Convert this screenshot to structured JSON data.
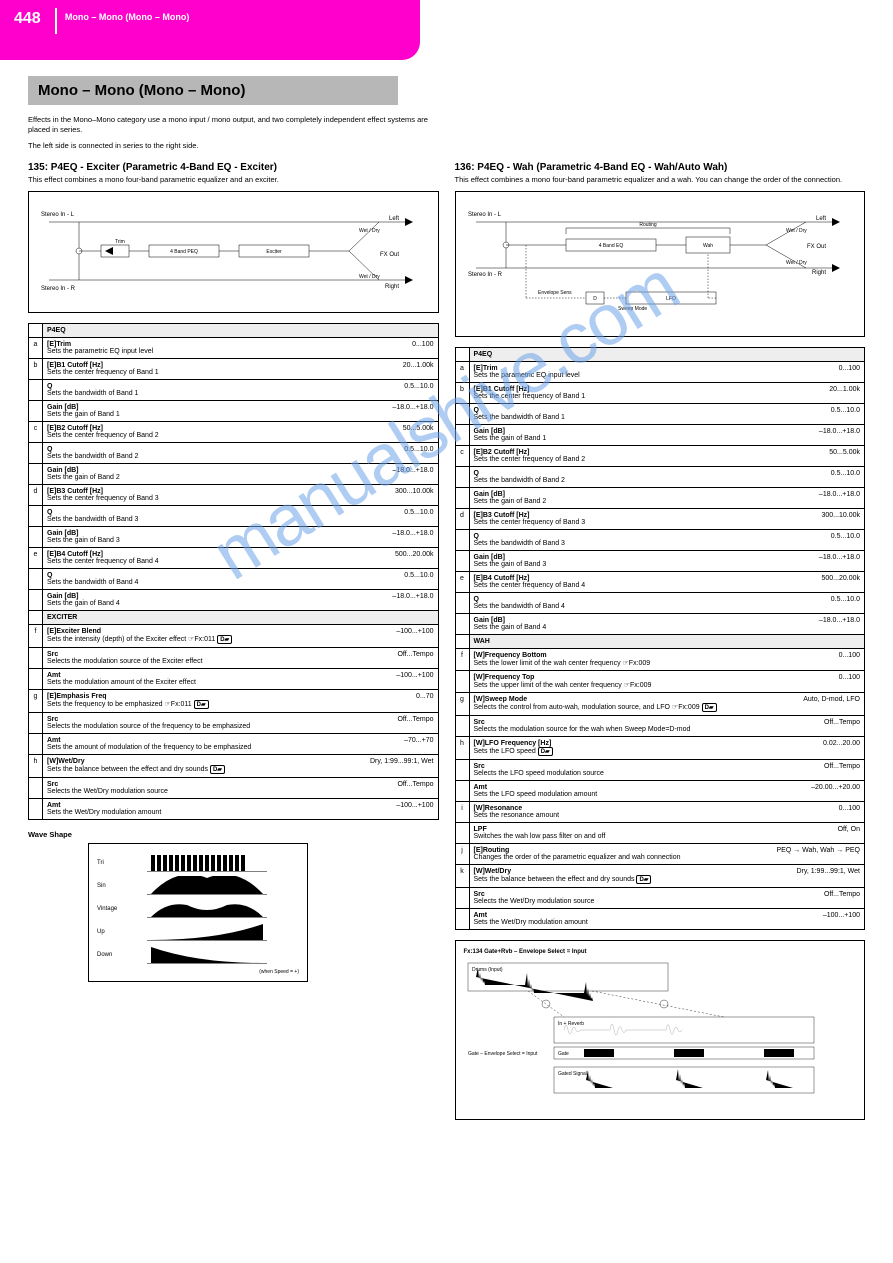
{
  "header": {
    "page_number": "448",
    "breadcrumb": "Mono – Mono (Mono – Mono)"
  },
  "section": {
    "title": "Mono – Mono (Mono – Mono)",
    "intro": "Effects in the Mono–Mono category use a mono input / mono output, and two completely independent effect systems are placed in series.",
    "chain_note": "The left side is connected in series to the right side."
  },
  "effects": [
    {
      "id": "135",
      "name": "P4EQ - Exciter (Parametric 4-Band EQ - Exciter)",
      "desc": "This effect combines a mono four-band parametric equalizer and an exciter."
    },
    {
      "id": "136",
      "name": "P4EQ - Wah (Parametric 4-Band EQ - Wah/Auto Wah)",
      "desc": "This effect combines a mono four-band parametric equalizer and a wah. You can change the order of the connection."
    }
  ],
  "diagrams": {
    "d1_labels": {
      "in_l": "Stereo In - L",
      "in_r": "Stereo In - R",
      "out_l": "Left",
      "out_r": "Right",
      "wet": "Wet / Dry",
      "blocks": [
        "Trim",
        "4 Band PEQ",
        "Exciter"
      ],
      "fx": "FX Out"
    },
    "d2_labels": {
      "in_l": "Stereo In - L",
      "in_r": "Stereo In - R",
      "out_l": "Left",
      "out_r": "Right",
      "wet": "Wet / Dry",
      "blocks": [
        "4 Band EQ",
        "Wah"
      ],
      "sweep": "Sweep Mode",
      "env": "Envelope Sens",
      "lfo": "LFO",
      "dmod": "D-mod",
      "routing": "Routing"
    }
  },
  "tables": {
    "t135_header": {
      "group": "P4EQ"
    },
    "t135": [
      {
        "n": "a",
        "name": "[E]Trim",
        "range": "0...100",
        "desc": "Sets the parametric EQ input level"
      },
      {
        "n": "b",
        "name": "[E]B1 Cutoff [Hz]",
        "range": "20...1.00k",
        "desc": "Sets the center frequency of Band 1"
      },
      {
        "n": "",
        "name": "Q",
        "range": "0.5...10.0",
        "desc": "Sets the bandwidth of Band 1"
      },
      {
        "n": "",
        "name": "Gain [dB]",
        "range": "–18.0...+18.0",
        "desc": "Sets the gain of Band 1"
      },
      {
        "n": "c",
        "name": "[E]B2 Cutoff [Hz]",
        "range": "50...5.00k",
        "desc": "Sets the center frequency of Band 2"
      },
      {
        "n": "",
        "name": "Q",
        "range": "0.5...10.0",
        "desc": "Sets the bandwidth of Band 2"
      },
      {
        "n": "",
        "name": "Gain [dB]",
        "range": "–18.0...+18.0",
        "desc": "Sets the gain of Band 2"
      },
      {
        "n": "d",
        "name": "[E]B3 Cutoff [Hz]",
        "range": "300...10.00k",
        "desc": "Sets the center frequency of Band 3"
      },
      {
        "n": "",
        "name": "Q",
        "range": "0.5...10.0",
        "desc": "Sets the bandwidth of Band 3"
      },
      {
        "n": "",
        "name": "Gain [dB]",
        "range": "–18.0...+18.0",
        "desc": "Sets the gain of Band 3"
      },
      {
        "n": "e",
        "name": "[E]B4 Cutoff [Hz]",
        "range": "500...20.00k",
        "desc": "Sets the center frequency of Band 4"
      },
      {
        "n": "",
        "name": "Q",
        "range": "0.5...10.0",
        "desc": "Sets the bandwidth of Band 4"
      },
      {
        "n": "",
        "name": "Gain [dB]",
        "range": "–18.0...+18.0",
        "desc": "Sets the gain of Band 4"
      }
    ],
    "t135_group2": "EXCITER",
    "t135b": [
      {
        "n": "f",
        "name": "[E]Exciter Blend",
        "range": "–100...+100",
        "desc": "Sets the intensity (depth) of the Exciter effect ☞Fx:011",
        "dmod": true
      },
      {
        "n": "",
        "name": "Src",
        "range": "Off...Tempo",
        "desc": "Selects the modulation source of the Exciter effect"
      },
      {
        "n": "",
        "name": "Amt",
        "range": "–100...+100",
        "desc": "Sets the modulation amount of the Exciter effect"
      },
      {
        "n": "g",
        "name": "[E]Emphasis Freq",
        "range": "0...70",
        "desc": "Sets the frequency to be emphasized ☞Fx:011",
        "dmod": true
      },
      {
        "n": "",
        "name": "Src",
        "range": "Off...Tempo",
        "desc": "Selects the modulation source of the frequency to be emphasized"
      },
      {
        "n": "",
        "name": "Amt",
        "range": "–70...+70",
        "desc": "Sets the amount of modulation of the frequency to be emphasized"
      },
      {
        "n": "h",
        "name": "[W]Wet/Dry",
        "range": "Dry, 1:99...99:1, Wet",
        "desc": "Sets the balance between the effect and dry sounds",
        "dmod": true
      },
      {
        "n": "",
        "name": "Src",
        "range": "Off...Tempo",
        "desc": "Selects the Wet/Dry modulation source"
      },
      {
        "n": "",
        "name": "Amt",
        "range": "–100...+100",
        "desc": "Sets the Wet/Dry modulation amount"
      }
    ],
    "t136_header": {
      "group": "P4EQ"
    },
    "t136": [
      {
        "n": "a",
        "name": "[E]Trim",
        "range": "0...100",
        "desc": "Sets the parametric EQ input level"
      },
      {
        "n": "b",
        "name": "[E]B1 Cutoff [Hz]",
        "range": "20...1.00k",
        "desc": "Sets the center frequency of Band 1"
      },
      {
        "n": "",
        "name": "Q",
        "range": "0.5...10.0",
        "desc": "Sets the bandwidth of Band 1"
      },
      {
        "n": "",
        "name": "Gain [dB]",
        "range": "–18.0...+18.0",
        "desc": "Sets the gain of Band 1"
      },
      {
        "n": "c",
        "name": "[E]B2 Cutoff [Hz]",
        "range": "50...5.00k",
        "desc": "Sets the center frequency of Band 2"
      },
      {
        "n": "",
        "name": "Q",
        "range": "0.5...10.0",
        "desc": "Sets the bandwidth of Band 2"
      },
      {
        "n": "",
        "name": "Gain [dB]",
        "range": "–18.0...+18.0",
        "desc": "Sets the gain of Band 2"
      },
      {
        "n": "d",
        "name": "[E]B3 Cutoff [Hz]",
        "range": "300...10.00k",
        "desc": "Sets the center frequency of Band 3"
      },
      {
        "n": "",
        "name": "Q",
        "range": "0.5...10.0",
        "desc": "Sets the bandwidth of Band 3"
      },
      {
        "n": "",
        "name": "Gain [dB]",
        "range": "–18.0...+18.0",
        "desc": "Sets the gain of Band 3"
      },
      {
        "n": "e",
        "name": "[E]B4 Cutoff [Hz]",
        "range": "500...20.00k",
        "desc": "Sets the center frequency of Band 4"
      },
      {
        "n": "",
        "name": "Q",
        "range": "0.5...10.0",
        "desc": "Sets the bandwidth of Band 4"
      },
      {
        "n": "",
        "name": "Gain [dB]",
        "range": "–18.0...+18.0",
        "desc": "Sets the gain of Band 4"
      }
    ],
    "t136_group2": "WAH",
    "t136b": [
      {
        "n": "f",
        "name": "[W]Frequency Bottom",
        "range": "0...100",
        "desc": "Sets the lower limit of the wah center frequency ☞Fx:009"
      },
      {
        "n": "",
        "name": "[W]Frequency Top",
        "range": "0...100",
        "desc": "Sets the upper limit of the wah center frequency ☞Fx:009"
      },
      {
        "n": "g",
        "name": "[W]Sweep Mode",
        "range": "Auto, D-mod, LFO",
        "desc": "Selects the control from auto-wah, modulation source, and LFO ☞Fx:009",
        "dmod": true
      },
      {
        "n": "",
        "name": "Src",
        "range": "Off...Tempo",
        "desc": "Selects the modulation source for the wah when Sweep Mode=D-mod"
      },
      {
        "n": "h",
        "name": "[W]LFO Frequency [Hz]",
        "range": "0.02...20.00",
        "desc": "Sets the LFO speed",
        "dmod": true
      },
      {
        "n": "",
        "name": "Src",
        "range": "Off...Tempo",
        "desc": "Selects the LFO speed modulation source"
      },
      {
        "n": "",
        "name": "Amt",
        "range": "–20.00...+20.00",
        "desc": "Sets the LFO speed modulation amount"
      },
      {
        "n": "i",
        "name": "[W]Resonance",
        "range": "0...100",
        "desc": "Sets the resonance amount"
      },
      {
        "n": "",
        "name": "LPF",
        "range": "Off, On",
        "desc": "Switches the wah low pass filter on and off"
      },
      {
        "n": "j",
        "name": "[E]Routing",
        "range": "PEQ → Wah, Wah → PEQ",
        "desc": "Changes the order of the parametric equalizer and wah connection"
      },
      {
        "n": "k",
        "name": "[W]Wet/Dry",
        "range": "Dry, 1:99...99:1, Wet",
        "desc": "Sets the balance between the effect and dry sounds",
        "dmod": true
      },
      {
        "n": "",
        "name": "Src",
        "range": "Off...Tempo",
        "desc": "Selects the Wet/Dry modulation source"
      },
      {
        "n": "",
        "name": "Amt",
        "range": "–100...+100",
        "desc": "Sets the Wet/Dry modulation amount"
      }
    ]
  },
  "wave_shapes": {
    "title": "Wave Shape",
    "rows": [
      "Tri",
      "Sin",
      "Vintage",
      "Up",
      "Down"
    ],
    "footnote": "(when Speed = +)"
  },
  "gate_diagram": {
    "title": "Fx:134 Gate+Rvb – Envelope Select = Input",
    "labels": {
      "drums": "Drums (Input)",
      "in_reverb": "In + Reverb",
      "gate_input": "Gate – Envelope Select = Input",
      "gate": "Gate",
      "gated_signal": "Gated Signal"
    }
  },
  "colors": {
    "tab": "#ff00cc",
    "section_bg": "#b7b7b7",
    "text": "#000000",
    "watermark": "#6ea3e8"
  }
}
